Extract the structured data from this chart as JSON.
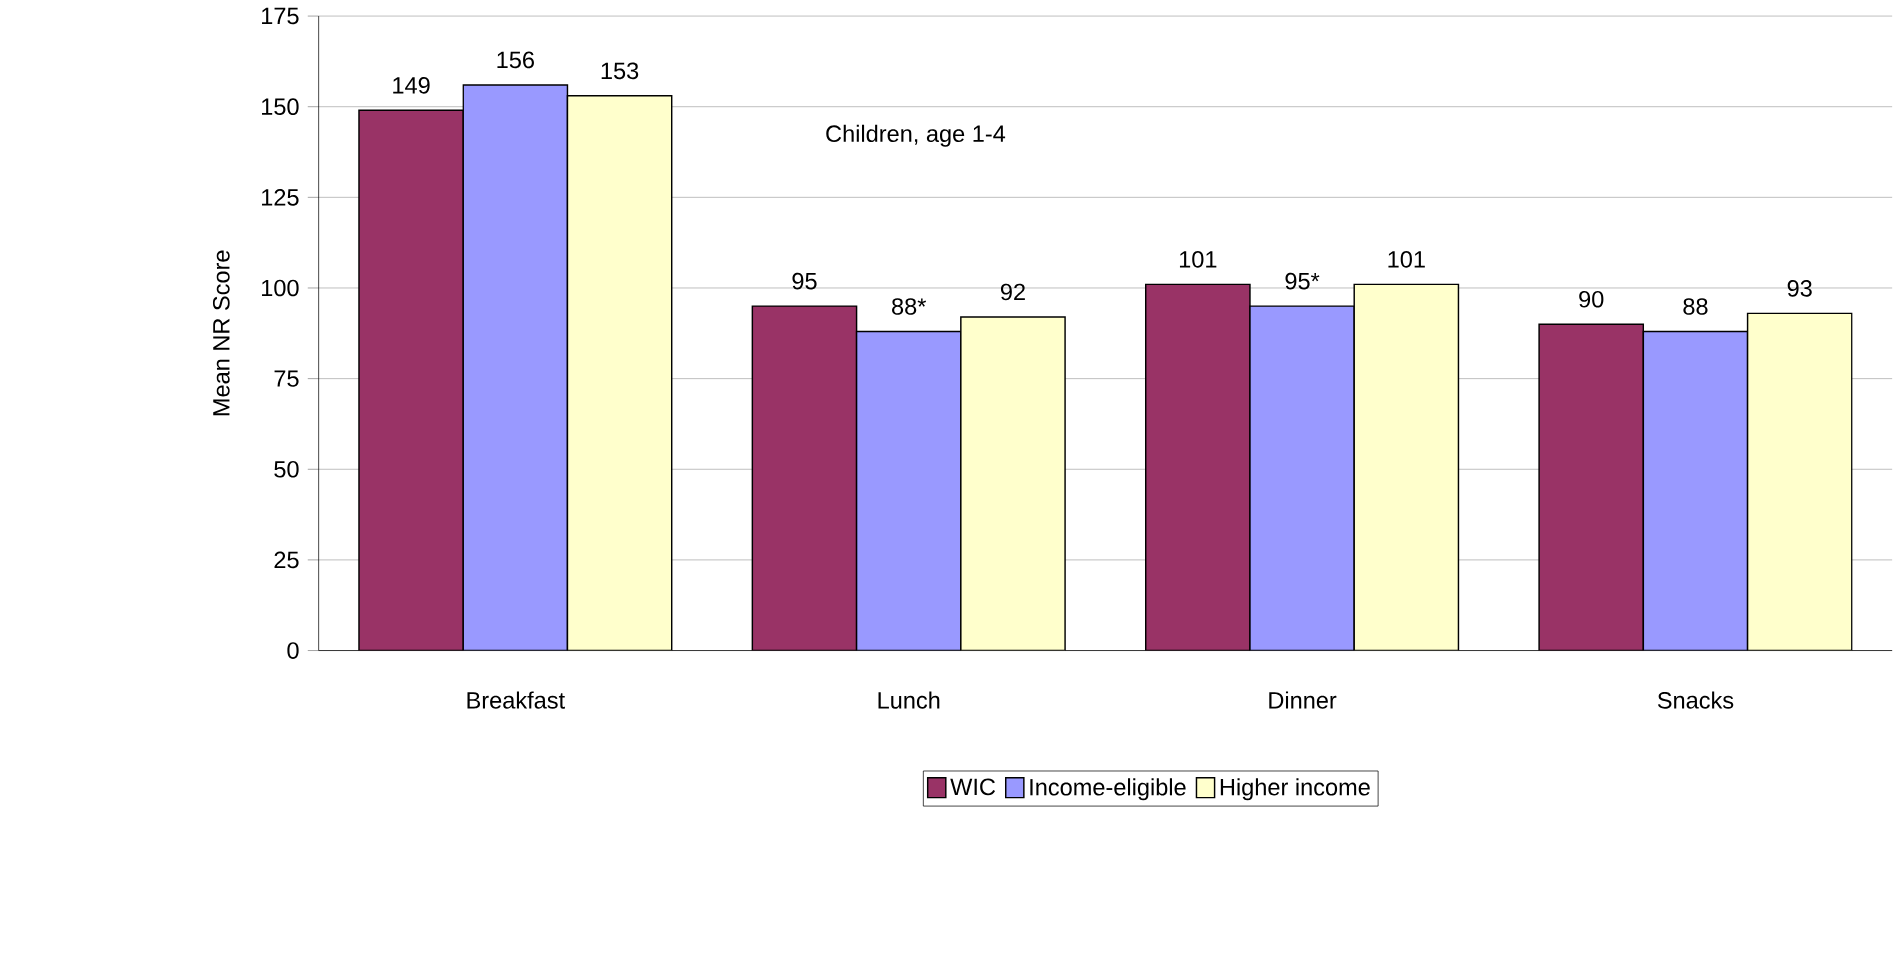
{
  "chart_data": {
    "type": "bar",
    "title": "Children, age 1-4",
    "ylabel": "Mean NR Score",
    "categories": [
      "Breakfast",
      "Lunch",
      "Dinner",
      "Snacks"
    ],
    "series": [
      {
        "name": "WIC",
        "color": "#993366",
        "values": [
          149,
          95,
          101,
          90
        ],
        "value_labels": [
          "149",
          "95",
          "101",
          "90"
        ]
      },
      {
        "name": "Income-eligible",
        "color": "#9999ff",
        "values": [
          156,
          88,
          95,
          88
        ],
        "value_labels": [
          "156",
          "88*",
          "95*",
          "88"
        ]
      },
      {
        "name": "Higher income",
        "color": "#ffffcc",
        "values": [
          153,
          92,
          101,
          93
        ],
        "value_labels": [
          "153",
          "92",
          "101",
          "93"
        ]
      }
    ],
    "ylim": [
      0,
      175
    ],
    "yticks": [
      0,
      25,
      50,
      75,
      100,
      125,
      150,
      175
    ],
    "grid": "y",
    "legend": "bottom"
  }
}
